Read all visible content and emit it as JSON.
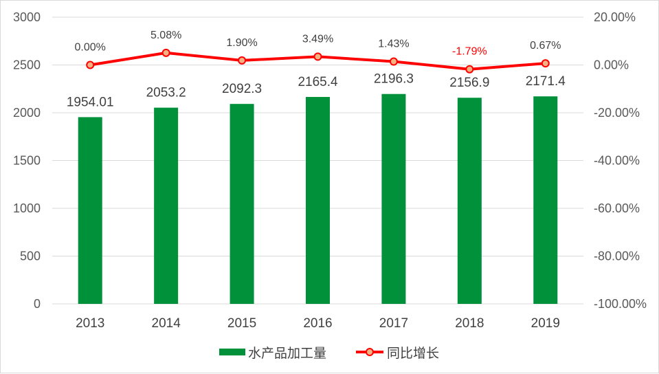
{
  "chart_data": {
    "type": "bar",
    "categories": [
      "2013",
      "2014",
      "2015",
      "2016",
      "2017",
      "2018",
      "2019"
    ],
    "series": [
      {
        "name": "水产品加工量",
        "type": "bar",
        "axis": "left",
        "values": [
          1954.01,
          2053.2,
          2092.3,
          2165.4,
          2196.3,
          2156.9,
          2171.4
        ],
        "labels": [
          "1954.01",
          "2053.2",
          "2092.3",
          "2165.4",
          "2196.3",
          "2156.9",
          "2171.4"
        ],
        "color": "#00913a"
      },
      {
        "name": "同比增长",
        "type": "line",
        "axis": "right",
        "values": [
          0.0,
          5.08,
          1.9,
          3.49,
          1.43,
          -1.79,
          0.67
        ],
        "labels": [
          "0.00%",
          "5.08%",
          "1.90%",
          "3.49%",
          "1.43%",
          "-1.79%",
          "0.67%"
        ],
        "label_colors": [
          "#404040",
          "#404040",
          "#404040",
          "#404040",
          "#404040",
          "#ff0000",
          "#404040"
        ],
        "color": "#ff0000",
        "marker_fill": "#f4b183"
      }
    ],
    "y_left": {
      "lim": [
        0,
        3000
      ],
      "ticks": [
        "3000",
        "2500",
        "2000",
        "1500",
        "1000",
        "500",
        "0"
      ],
      "tick_values": [
        3000,
        2500,
        2000,
        1500,
        1000,
        500,
        0
      ]
    },
    "y_right": {
      "lim": [
        -100,
        20
      ],
      "ticks": [
        "20.00%",
        "0.00%",
        "-20.00%",
        "-40.00%",
        "-60.00%",
        "-80.00%",
        "-100.00%"
      ],
      "tick_values": [
        20,
        0,
        -20,
        -40,
        -60,
        -80,
        -100
      ]
    },
    "grid": true,
    "legend_position": "bottom",
    "title": "",
    "xlabel": "",
    "ylabel": ""
  }
}
